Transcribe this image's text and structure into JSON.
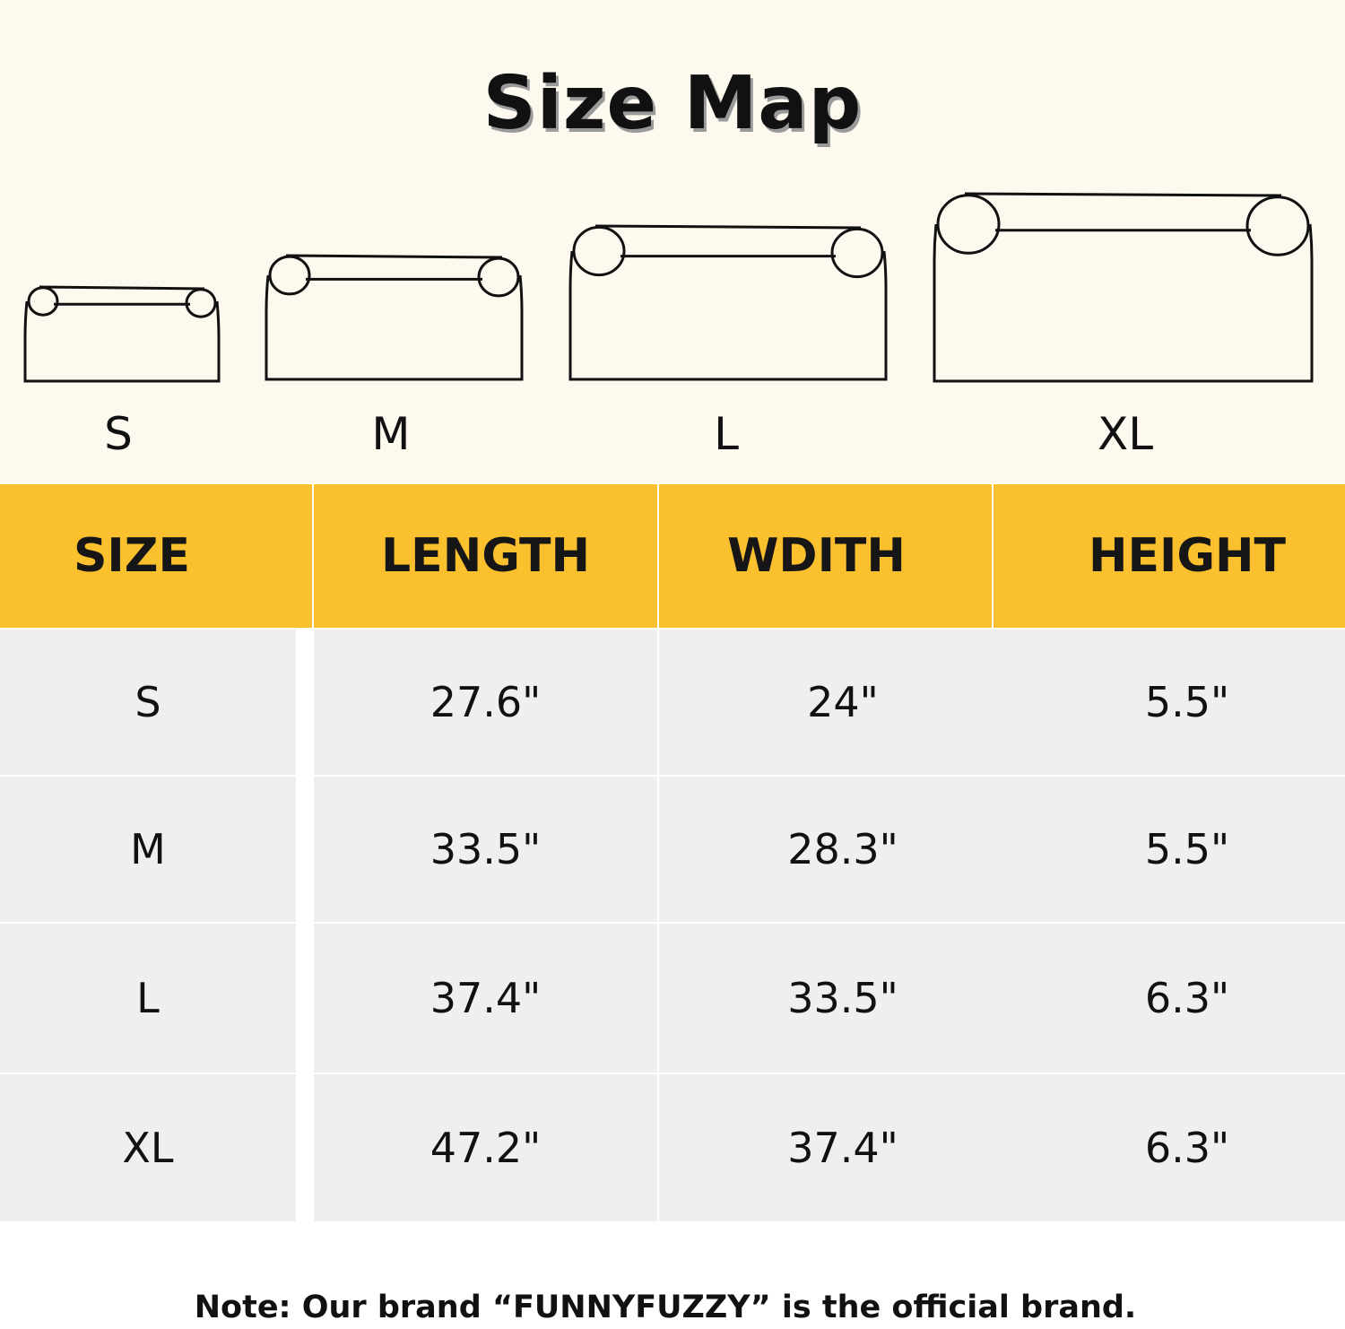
{
  "title": "Size Map",
  "beds": [
    {
      "label": "S"
    },
    {
      "label": "M"
    },
    {
      "label": "L"
    },
    {
      "label": "XL"
    }
  ],
  "table": {
    "headers": [
      "SIZE",
      "LENGTH",
      "WDITH",
      "HEIGHT"
    ],
    "rows": [
      [
        "S",
        "27.6\"",
        "24\"",
        "5.5\""
      ],
      [
        "M",
        "33.5\"",
        "28.3\"",
        "5.5\""
      ],
      [
        "L",
        "37.4\"",
        "33.5\"",
        "6.3\""
      ],
      [
        "XL",
        "47.2\"",
        "37.4\"",
        "6.3\""
      ]
    ]
  },
  "note": "Note: Our brand “FUNNYFUZZY” is the official brand.",
  "colors": {
    "header": "#fbc02d",
    "background": "#fdf9ee",
    "row": "#efefef"
  }
}
